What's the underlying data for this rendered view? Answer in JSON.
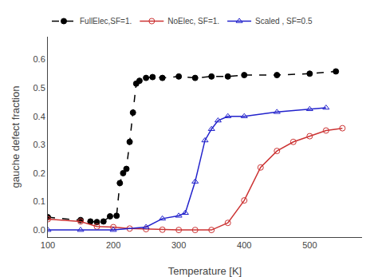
{
  "chart_data": {
    "type": "line",
    "xlabel": "Temperature [K]",
    "ylabel": "gauche defect fraction",
    "series": [
      {
        "name": "FullElec,SF=1.",
        "color": "#000000",
        "marker": "circle",
        "line_style": "dash",
        "x": [
          100,
          150,
          165,
          175,
          185,
          195,
          205,
          210,
          215,
          220,
          225,
          230,
          235,
          240,
          250,
          260,
          275,
          300,
          325,
          350,
          375,
          400,
          450,
          500,
          540
        ],
        "values": [
          0.045,
          0.035,
          0.03,
          0.028,
          0.03,
          0.048,
          0.05,
          0.165,
          0.2,
          0.215,
          0.31,
          0.413,
          0.515,
          0.525,
          0.535,
          0.538,
          0.535,
          0.54,
          0.535,
          0.54,
          0.54,
          0.545,
          0.545,
          0.55,
          0.558
        ]
      },
      {
        "name": "NoElec, SF=1.",
        "color": "#cc3333",
        "marker": "circle-open",
        "line_style": "solid",
        "x": [
          100,
          150,
          175,
          200,
          225,
          250,
          275,
          300,
          325,
          350,
          375,
          400,
          425,
          450,
          475,
          500,
          525,
          550
        ],
        "values": [
          0.038,
          0.03,
          0.012,
          0.01,
          0.005,
          0.003,
          0.001,
          0.0,
          0.0,
          0.0,
          0.025,
          0.104,
          0.22,
          0.278,
          0.31,
          0.33,
          0.35,
          0.358
        ]
      },
      {
        "name": "Scaled , SF=0.5",
        "color": "#2222cc",
        "marker": "triangle-up-open",
        "line_style": "solid",
        "x": [
          100,
          150,
          200,
          250,
          275,
          300,
          310,
          325,
          340,
          350,
          360,
          375,
          400,
          450,
          500,
          525
        ],
        "values": [
          0.0,
          0.0,
          0.0,
          0.01,
          0.04,
          0.05,
          0.06,
          0.17,
          0.315,
          0.355,
          0.385,
          0.4,
          0.4,
          0.415,
          0.425,
          0.43
        ]
      }
    ],
    "xlim": [
      100,
      580
    ],
    "ylim": [
      -0.025,
      0.68
    ],
    "xticks": [
      100,
      200,
      300,
      400,
      500
    ],
    "yticks": [
      {
        "value": 0,
        "label": "0.0"
      },
      0.1,
      0.2,
      0.3,
      0.4,
      0.5,
      0.6
    ],
    "grid": false,
    "legend": "upper left"
  }
}
